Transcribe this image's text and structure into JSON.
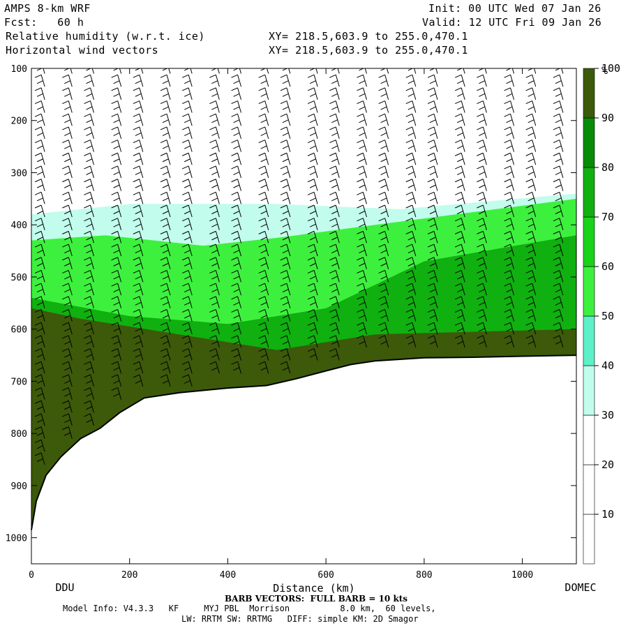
{
  "header": {
    "model_name": "AMPS 8-km WRF",
    "forecast": "Fcst:   60 h",
    "field1": "Relative humidity (w.r.t. ice)",
    "field2": "Horizontal wind vectors",
    "init": "Init: 00 UTC Wed 07 Jan 26",
    "valid": "Valid: 12 UTC Fri 09 Jan 26",
    "xy1": "XY= 218.5,603.9 to 255.0,470.1",
    "xy2": "XY= 218.5,603.9 to 255.0,470.1"
  },
  "footer": {
    "barb_note": "BARB VECTORS:  FULL BARB = 10 kts",
    "model_info": "Model Info: V4.3.3   KF     MYJ PBL  Morrison          8.0 km,  60 levels,",
    "physics": "LW: RRTM SW: RRTMG   DIFF: simple KM: 2D Smagor"
  },
  "colors": {
    "white": "#ffffff",
    "pale_cyan": "#c2fcec",
    "aqua": "#5ef0c8",
    "lime": "#3ef03e",
    "bright_green": "#1ad21a",
    "green": "#10b010",
    "dark_green": "#088c08",
    "olive": "#3c5a0a"
  },
  "chart_data": {
    "type": "heatmap",
    "title": "Relative humidity (w.r.t. ice)",
    "xlabel": "Distance (km)",
    "ylabel": "",
    "xlim": [
      0,
      1110
    ],
    "ylim": [
      1050,
      100
    ],
    "x_ticks": [
      0,
      200,
      400,
      600,
      800,
      1000
    ],
    "y_ticks": [
      100,
      200,
      300,
      400,
      500,
      600,
      700,
      800,
      900,
      1000
    ],
    "endpoints": {
      "left": "DDU",
      "right": "DOMEC"
    },
    "colorbar": {
      "unit": "%",
      "levels": [
        10,
        20,
        30,
        40,
        50,
        60,
        70,
        80,
        90,
        100
      ],
      "colors": [
        "#ffffff",
        "#ffffff",
        "#ffffff",
        "#c2fcec",
        "#5ef0c8",
        "#3ef03e",
        "#1ad21a",
        "#10b010",
        "#088c08",
        "#3c5a0a"
      ]
    },
    "terrain_pressure": [
      [
        0,
        985
      ],
      [
        10,
        930
      ],
      [
        30,
        880
      ],
      [
        60,
        845
      ],
      [
        100,
        810
      ],
      [
        140,
        790
      ],
      [
        180,
        760
      ],
      [
        230,
        732
      ],
      [
        300,
        722
      ],
      [
        400,
        713
      ],
      [
        480,
        708
      ],
      [
        540,
        695
      ],
      [
        600,
        680
      ],
      [
        650,
        668
      ],
      [
        700,
        661
      ],
      [
        800,
        655
      ],
      [
        900,
        654
      ],
      [
        1000,
        652
      ],
      [
        1110,
        650
      ]
    ],
    "rh_regions": [
      {
        "name": "upper-moist-layer",
        "value": 35,
        "top": [
          [
            0,
            350
          ],
          [
            250,
            330
          ],
          [
            500,
            330
          ],
          [
            800,
            330
          ],
          [
            1110,
            305
          ]
        ],
        "bottom_to": "terrain"
      },
      {
        "name": "lower-moist-layer",
        "value": 45,
        "top": [
          [
            0,
            380
          ],
          [
            200,
            360
          ],
          [
            500,
            360
          ],
          [
            750,
            370
          ],
          [
            1110,
            340
          ]
        ],
        "bottom_to": "terrain"
      },
      {
        "name": "green-layer",
        "value": 65,
        "top": [
          [
            0,
            430
          ],
          [
            150,
            420
          ],
          [
            350,
            440
          ],
          [
            500,
            425
          ],
          [
            700,
            400
          ],
          [
            1110,
            350
          ]
        ],
        "bottom_to": "terrain"
      },
      {
        "name": "deep-green-layer",
        "value": 85,
        "top": [
          [
            0,
            540
          ],
          [
            200,
            575
          ],
          [
            400,
            590
          ],
          [
            600,
            560
          ],
          [
            800,
            470
          ],
          [
            1110,
            420
          ]
        ],
        "bottom_to": "terrain"
      },
      {
        "name": "olive-core",
        "value": 100,
        "top": [
          [
            0,
            560
          ],
          [
            100,
            580
          ],
          [
            500,
            640
          ],
          [
            700,
            610
          ],
          [
            1110,
            600
          ]
        ],
        "bottom_to": "terrain"
      }
    ],
    "barb_columns_km": [
      30,
      80,
      130,
      180,
      230,
      280,
      330,
      380,
      430,
      480,
      530,
      580,
      630,
      680,
      730,
      780,
      830,
      880,
      930,
      980,
      1030,
      1080
    ]
  }
}
